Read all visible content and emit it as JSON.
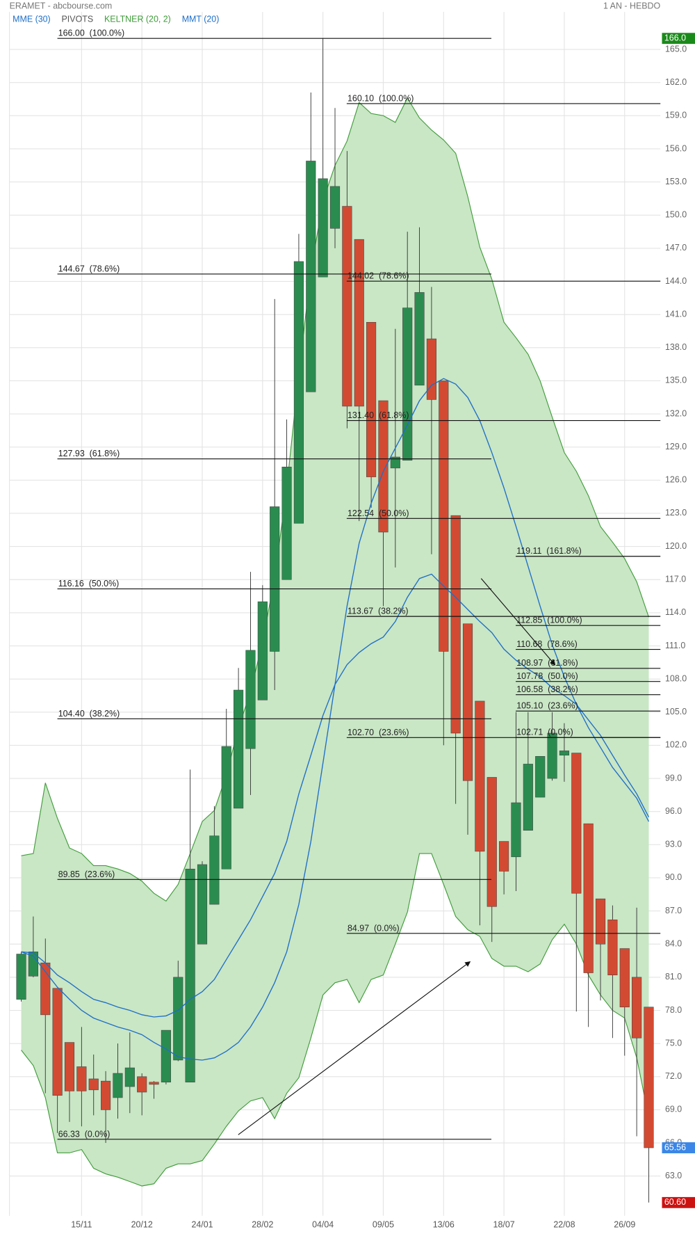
{
  "chart_data": {
    "type": "candlestick",
    "title": "ERAMET - abcbourse.com",
    "period": "1 AN - HEBDO",
    "categories": [
      null,
      null,
      null,
      null,
      null,
      "15/11",
      null,
      null,
      null,
      null,
      "20/12",
      null,
      null,
      null,
      null,
      "24/01",
      null,
      null,
      null,
      null,
      "28/02",
      null,
      null,
      null,
      null,
      "04/04",
      null,
      null,
      null,
      null,
      "09/05",
      null,
      null,
      null,
      null,
      "13/06",
      null,
      null,
      null,
      null,
      "18/07",
      null,
      null,
      null,
      null,
      "22/08",
      null,
      null,
      null,
      null,
      "26/09",
      null,
      null
    ],
    "open": [
      79.0,
      81.1,
      82.3,
      80.0,
      75.1,
      72.9,
      71.8,
      71.6,
      70.1,
      71.1,
      72.0,
      71.5,
      71.5,
      73.5,
      71.5,
      84.0,
      87.6,
      90.8,
      96.3,
      101.7,
      106.1,
      110.5,
      117.0,
      122.1,
      134.0,
      144.4,
      148.8,
      150.8,
      147.8,
      140.3,
      133.2,
      127.1,
      127.8,
      134.6,
      138.8,
      135.0,
      122.8,
      113.0,
      106.0,
      99.1,
      93.3,
      91.9,
      94.3,
      97.3,
      99.0,
      101.1,
      101.3,
      94.9,
      88.1,
      86.2,
      83.6,
      81.0,
      78.3
    ],
    "high": [
      83.3,
      86.5,
      84.5,
      80.0,
      75.1,
      76.5,
      74.0,
      72.5,
      75.0,
      76.0,
      72.3,
      71.6,
      76.2,
      82.5,
      99.8,
      91.5,
      96.5,
      105.3,
      109.0,
      117.7,
      116.5,
      142.4,
      131.5,
      148.3,
      161.1,
      166.0,
      159.7,
      155.8,
      147.8,
      140.3,
      133.2,
      139.7,
      148.5,
      148.9,
      143.5,
      135.0,
      122.8,
      113.0,
      106.0,
      99.1,
      93.3,
      105.0,
      105.0,
      101.0,
      105.0,
      104.0,
      101.3,
      94.9,
      88.1,
      87.5,
      83.6,
      87.3,
      78.3
    ],
    "low": [
      78.8,
      81.0,
      70.5,
      66.9,
      67.9,
      67.5,
      68.5,
      66.0,
      68.2,
      68.7,
      68.5,
      70.0,
      71.3,
      73.4,
      71.5,
      84.0,
      87.6,
      90.8,
      96.3,
      97.5,
      106.1,
      107.0,
      117.0,
      122.1,
      134.0,
      144.4,
      147.0,
      130.7,
      122.3,
      123.5,
      114.6,
      118.1,
      127.8,
      134.6,
      119.3,
      102.0,
      96.7,
      93.9,
      85.7,
      84.2,
      88.5,
      88.8,
      94.3,
      97.3,
      98.8,
      98.7,
      77.9,
      76.5,
      78.9,
      75.5,
      73.9,
      66.6,
      60.6
    ],
    "close": [
      83.1,
      83.3,
      77.6,
      70.3,
      70.7,
      70.7,
      70.8,
      69.0,
      72.3,
      72.8,
      70.6,
      71.3,
      76.2,
      81.0,
      90.8,
      91.2,
      93.8,
      101.9,
      107.0,
      110.6,
      115.0,
      123.6,
      127.2,
      145.8,
      154.9,
      153.3,
      152.6,
      132.7,
      132.7,
      126.3,
      121.3,
      128.1,
      141.6,
      143.0,
      133.3,
      110.5,
      103.1,
      98.8,
      92.4,
      87.4,
      90.6,
      96.8,
      100.3,
      101.0,
      103.1,
      101.5,
      88.6,
      81.4,
      84.0,
      81.2,
      78.3,
      75.5,
      65.56
    ],
    "up_color": "#2b8c50",
    "down_color": "#d34a32",
    "indicators": [
      {
        "name": "MME (30)",
        "color": "#1e6fc8",
        "values": [
          83.3,
          83.2,
          82.3,
          81.2,
          80.5,
          79.7,
          79.0,
          78.7,
          78.3,
          78.0,
          77.6,
          77.4,
          77.5,
          78.0,
          79.0,
          79.7,
          80.8,
          82.6,
          84.4,
          86.2,
          88.3,
          90.4,
          93.3,
          97.6,
          101.1,
          104.7,
          107.5,
          109.3,
          110.4,
          111.2,
          111.8,
          113.2,
          115.4,
          117.1,
          117.5,
          116.4,
          115.4,
          114.3,
          113.2,
          112.2,
          110.7,
          109.7,
          108.9,
          108.2,
          107.2,
          106.5,
          105.7,
          104.3,
          102.9,
          101.1,
          99.3,
          97.6,
          95.5
        ]
      },
      {
        "name": "PIVOTS",
        "color": "#555555"
      },
      {
        "name": "KELTNER (20, 2)",
        "color": "#3f9c3a",
        "fill": "#c9e6c5",
        "upper": [
          92.0,
          92.2,
          98.6,
          95.4,
          92.7,
          92.2,
          91.1,
          91.1,
          90.8,
          90.4,
          89.7,
          88.6,
          87.9,
          89.4,
          92.2,
          95.1,
          96.1,
          99.3,
          103.6,
          106.8,
          111.4,
          117.1,
          125.3,
          135.7,
          144.9,
          151.3,
          154.5,
          156.7,
          160.2,
          159.2,
          159.0,
          158.4,
          160.6,
          158.8,
          157.7,
          156.8,
          155.6,
          151.7,
          147.1,
          144.2,
          140.3,
          138.9,
          137.4,
          135.0,
          131.7,
          128.5,
          126.8,
          124.6,
          121.8,
          120.4,
          118.9,
          116.8,
          113.6
        ],
        "lower": [
          74.4,
          73.0,
          70.1,
          65.1,
          65.1,
          65.4,
          63.7,
          63.2,
          62.9,
          62.5,
          62.1,
          62.3,
          63.7,
          64.1,
          64.1,
          64.4,
          65.9,
          67.5,
          68.9,
          69.8,
          70.1,
          68.2,
          70.5,
          71.9,
          75.5,
          79.4,
          80.5,
          80.8,
          78.7,
          80.8,
          81.2,
          84.0,
          86.9,
          92.2,
          92.2,
          89.4,
          86.5,
          85.3,
          84.7,
          82.7,
          82.0,
          82.0,
          81.5,
          82.2,
          84.4,
          85.8,
          84.0,
          81.2,
          79.4,
          78.0,
          77.3,
          73.7,
          68.3
        ]
      },
      {
        "name": "MMT (20)",
        "color": "#1e6fc8",
        "values": [
          83.3,
          82.9,
          81.5,
          80.1,
          79.0,
          78.0,
          77.3,
          76.9,
          76.5,
          76.2,
          75.8,
          75.1,
          74.5,
          73.8,
          73.6,
          73.5,
          73.7,
          74.3,
          75.1,
          76.5,
          78.3,
          80.5,
          83.3,
          87.6,
          93.3,
          100.4,
          107.5,
          114.6,
          120.3,
          123.9,
          126.8,
          128.9,
          131.0,
          133.2,
          134.6,
          135.2,
          134.7,
          133.5,
          131.4,
          128.5,
          125.3,
          121.8,
          118.2,
          114.6,
          111.1,
          108.2,
          105.7,
          103.6,
          101.8,
          100.0,
          98.6,
          97.2,
          95.1
        ]
      }
    ],
    "fibonacci": [
      {
        "levels": [
          {
            "value": 166.0,
            "label": "166.00  (100.0%)"
          },
          {
            "value": 144.67,
            "label": "144.67  (78.6%)"
          },
          {
            "value": 127.93,
            "label": "127.93  (61.8%)"
          },
          {
            "value": 116.16,
            "label": "116.16  (50.0%)"
          },
          {
            "value": 104.4,
            "label": "104.40  (38.2%)"
          },
          {
            "value": 89.85,
            "label": "89.85  (23.6%)"
          },
          {
            "value": 66.33,
            "label": "66.33  (0.0%)"
          }
        ]
      },
      {
        "levels": [
          {
            "value": 160.1,
            "label": "160.10  (100.0%)"
          },
          {
            "value": 144.02,
            "label": "144.02  (78.6%)"
          },
          {
            "value": 131.4,
            "label": "131.40  (61.8%)"
          },
          {
            "value": 122.54,
            "label": "122.54  (50.0%)"
          },
          {
            "value": 113.67,
            "label": "113.67  (38.2%)"
          },
          {
            "value": 102.7,
            "label": "102.70  (23.6%)"
          },
          {
            "value": 84.97,
            "label": "84.97  (0.0%)"
          }
        ]
      },
      {
        "levels": [
          {
            "value": 119.11,
            "label": "119.11  (161.8%)"
          },
          {
            "value": 112.85,
            "label": "112.85  (100.0%)"
          },
          {
            "value": 110.68,
            "label": "110.68  (78.6%)"
          },
          {
            "value": 108.97,
            "label": "108.97  (61.8%)"
          },
          {
            "value": 107.78,
            "label": "107.78  (50.0%)"
          },
          {
            "value": 106.58,
            "label": "106.58  (38.2%)"
          },
          {
            "value": 105.1,
            "label": "105.10  (23.6%)"
          },
          {
            "value": 102.71,
            "label": "102.71  (0.0%)"
          }
        ]
      }
    ],
    "price_labels": [
      {
        "value": 166.0,
        "label": "166.0",
        "color": "#1a8a1a"
      },
      {
        "value": 65.56,
        "label": "65.56",
        "color": "#3b86e6"
      },
      {
        "value": 60.6,
        "label": "60.60",
        "color": "#cc1111"
      }
    ],
    "ylim": [
      59.4,
      168.4
    ],
    "yticks": [
      {
        "value": 63,
        "label": "63.0"
      },
      {
        "value": 66,
        "label": "66.0"
      },
      {
        "value": 69,
        "label": "69.0"
      },
      {
        "value": 72,
        "label": "72.0"
      },
      {
        "value": 75,
        "label": "75.0"
      },
      {
        "value": 78,
        "label": "78.0"
      },
      {
        "value": 81,
        "label": "81.0"
      },
      {
        "value": 84,
        "label": "84.0"
      },
      {
        "value": 87,
        "label": "87.0"
      },
      {
        "value": 90,
        "label": "90.0"
      },
      {
        "value": 93,
        "label": "93.0"
      },
      {
        "value": 96,
        "label": "96.0"
      },
      {
        "value": 99,
        "label": "99.0"
      },
      {
        "value": 102,
        "label": "102.0"
      },
      {
        "value": 105,
        "label": "105.0"
      },
      {
        "value": 108,
        "label": "108.0"
      },
      {
        "value": 111,
        "label": "111.0"
      },
      {
        "value": 114,
        "label": "114.0"
      },
      {
        "value": 117,
        "label": "117.0"
      },
      {
        "value": 120,
        "label": "120.0"
      },
      {
        "value": 123,
        "label": "123.0"
      },
      {
        "value": 126,
        "label": "126.0"
      },
      {
        "value": 129,
        "label": "129.0"
      },
      {
        "value": 132,
        "label": "132.0"
      },
      {
        "value": 135,
        "label": "135.0"
      },
      {
        "value": 138,
        "label": "138.0"
      },
      {
        "value": 141,
        "label": "141.0"
      },
      {
        "value": 144,
        "label": "144.0"
      },
      {
        "value": 147,
        "label": "147.0"
      },
      {
        "value": 150,
        "label": "150.0"
      },
      {
        "value": 153,
        "label": "153.0"
      },
      {
        "value": 156,
        "label": "156.0"
      },
      {
        "value": 159,
        "label": "159.0"
      },
      {
        "value": 162,
        "label": "162.0"
      },
      {
        "value": 165,
        "label": "165.0"
      }
    ],
    "grid": true
  }
}
